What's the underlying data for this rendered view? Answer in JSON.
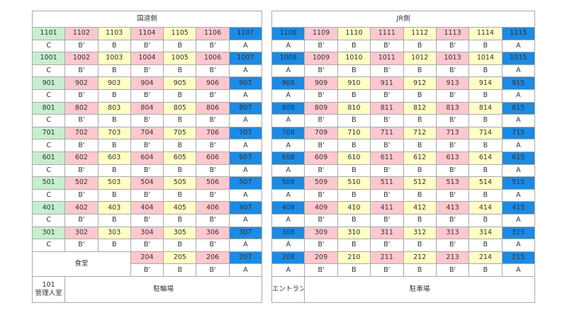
{
  "left": {
    "title": "国道側",
    "rows": [
      [
        "1101",
        "1102",
        "1103",
        "1104",
        "1105",
        "1106",
        "1107"
      ],
      [
        "C",
        "B'",
        "B",
        "B'",
        "B",
        "B'",
        "A"
      ],
      [
        "1001",
        "1002",
        "1003",
        "1004",
        "1005",
        "1006",
        "1007"
      ],
      [
        "C",
        "B'",
        "B",
        "B'",
        "B",
        "B'",
        "A"
      ],
      [
        "901",
        "902",
        "903",
        "904",
        "905",
        "906",
        "907"
      ],
      [
        "C",
        "B'",
        "B",
        "B'",
        "B",
        "B'",
        "A"
      ],
      [
        "801",
        "802",
        "803",
        "804",
        "805",
        "806",
        "807"
      ],
      [
        "C",
        "B'",
        "B",
        "B'",
        "B",
        "B'",
        "A"
      ],
      [
        "701",
        "702",
        "703",
        "704",
        "705",
        "706",
        "707"
      ],
      [
        "C",
        "B'",
        "B",
        "B'",
        "B",
        "B'",
        "A"
      ],
      [
        "601",
        "602",
        "603",
        "604",
        "605",
        "606",
        "607"
      ],
      [
        "C",
        "B'",
        "B",
        "B'",
        "B",
        "B'",
        "A"
      ],
      [
        "501",
        "502",
        "503",
        "504",
        "505",
        "506",
        "507"
      ],
      [
        "C",
        "B'",
        "B",
        "B'",
        "B",
        "B'",
        "A"
      ],
      [
        "401",
        "402",
        "403",
        "404",
        "405",
        "406",
        "407"
      ],
      [
        "C",
        "B'",
        "B",
        "B'",
        "B",
        "B'",
        "A"
      ],
      [
        "301",
        "302",
        "303",
        "304",
        "305",
        "306",
        "307"
      ],
      [
        "C",
        "B'",
        "B",
        "B'",
        "B",
        "B'",
        "A"
      ]
    ],
    "floor2": {
      "label": "食堂",
      "rooms": [
        "204",
        "205",
        "206",
        "207"
      ],
      "grades": [
        "B'",
        "B",
        "B'",
        "A"
      ]
    },
    "bottom": {
      "cell": [
        "101",
        "管理人室"
      ],
      "label": "駐輪場"
    }
  },
  "right": {
    "title": "JR側",
    "rows": [
      [
        "1108",
        "1109",
        "1110",
        "1111",
        "1112",
        "1113",
        "1114",
        "1115"
      ],
      [
        "A",
        "B'",
        "B",
        "B'",
        "B",
        "B'",
        "B",
        "A"
      ],
      [
        "1008",
        "1009",
        "1010",
        "1011",
        "1012",
        "1013",
        "1014",
        "1015"
      ],
      [
        "A",
        "B'",
        "B",
        "B'",
        "B",
        "B'",
        "B",
        "A"
      ],
      [
        "908",
        "909",
        "910",
        "911",
        "912",
        "913",
        "914",
        "915"
      ],
      [
        "A",
        "B'",
        "B",
        "B'",
        "B",
        "B'",
        "B",
        "A"
      ],
      [
        "808",
        "809",
        "810",
        "811",
        "812",
        "813",
        "814",
        "815"
      ],
      [
        "A",
        "B'",
        "B",
        "B'",
        "B",
        "B'",
        "B",
        "A"
      ],
      [
        "708",
        "709",
        "710",
        "711",
        "712",
        "713",
        "714",
        "715"
      ],
      [
        "A",
        "B'",
        "B",
        "B'",
        "B",
        "B'",
        "B",
        "A"
      ],
      [
        "608",
        "609",
        "610",
        "611",
        "612",
        "613",
        "614",
        "615"
      ],
      [
        "A",
        "B'",
        "B",
        "B'",
        "B",
        "B'",
        "B",
        "A"
      ],
      [
        "508",
        "509",
        "510",
        "511",
        "512",
        "513",
        "514",
        "515"
      ],
      [
        "A",
        "B'",
        "B",
        "B'",
        "B",
        "B'",
        "B",
        "A"
      ],
      [
        "408",
        "409",
        "410",
        "411",
        "412",
        "413",
        "414",
        "415"
      ],
      [
        "A",
        "B'",
        "B",
        "B'",
        "B",
        "B'",
        "B",
        "A"
      ],
      [
        "308",
        "309",
        "310",
        "311",
        "312",
        "313",
        "314",
        "315"
      ],
      [
        "A",
        "B'",
        "B",
        "B'",
        "B",
        "B'",
        "B",
        "A"
      ],
      [
        "208",
        "209",
        "210",
        "211",
        "212",
        "213",
        "214",
        "215"
      ],
      [
        "A",
        "B'",
        "B",
        "B'",
        "B",
        "B'",
        "B",
        "A"
      ]
    ],
    "bottom": {
      "cell": [
        "エントランス"
      ],
      "label": "駐車場"
    }
  }
}
